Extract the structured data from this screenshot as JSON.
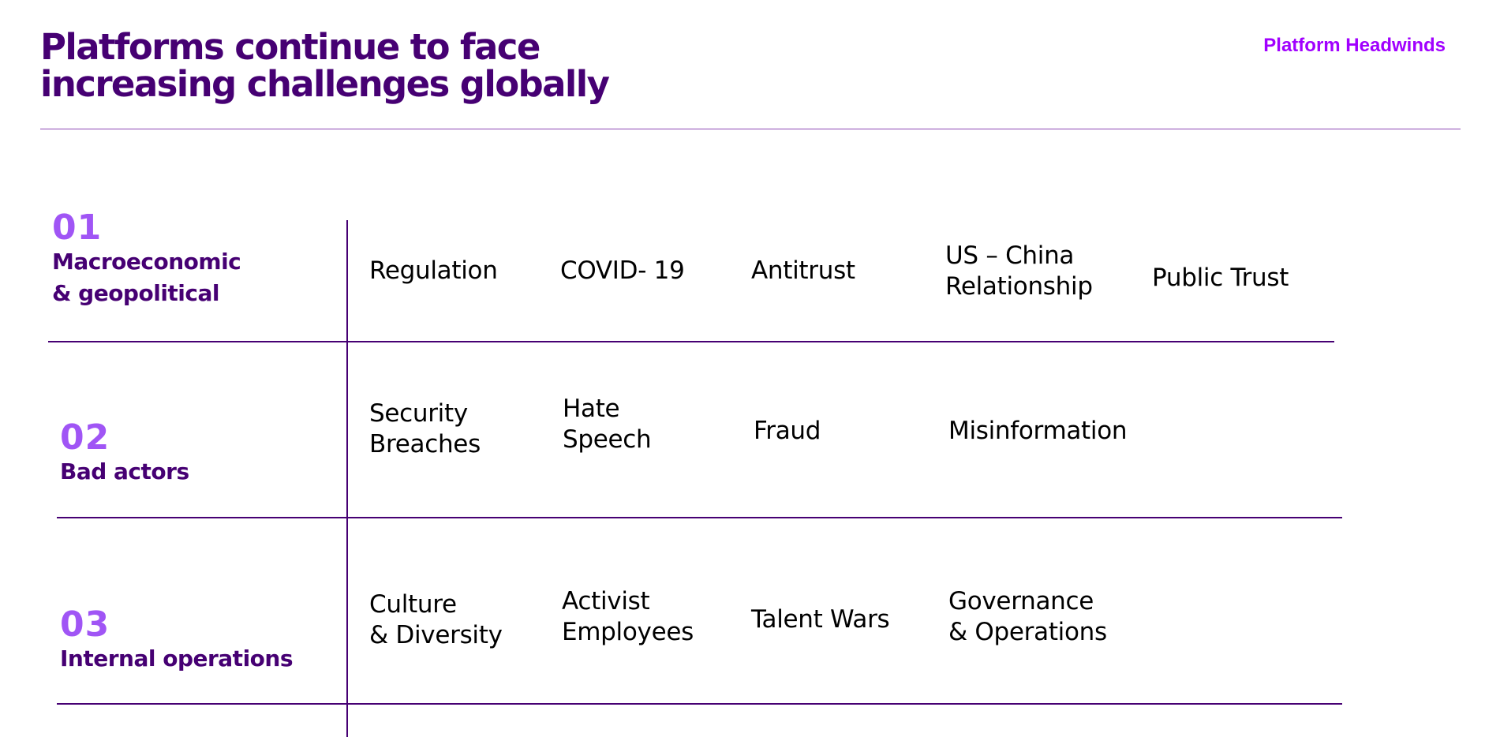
{
  "header": {
    "title_line1": "Platforms continue to face",
    "title_line2": "increasing challenges globally",
    "section_tag": "Platform Headwinds"
  },
  "rows": [
    {
      "number": "01",
      "label_line1": "Macroeconomic",
      "label_line2": "& geopolitical",
      "items": [
        {
          "line1": "Regulation"
        },
        {
          "line1": "COVID- 19"
        },
        {
          "line1": "Antitrust"
        },
        {
          "line1": "US – China",
          "line2": "Relationship"
        },
        {
          "line1": "Public Trust"
        }
      ]
    },
    {
      "number": "02",
      "label_line1": "Bad actors",
      "items": [
        {
          "line1": "Security",
          "line2": "Breaches"
        },
        {
          "line1": "Hate",
          "line2": "Speech"
        },
        {
          "line1": "Fraud"
        },
        {
          "line1": "Misinformation"
        }
      ]
    },
    {
      "number": "03",
      "label_line1": "Internal operations",
      "items": [
        {
          "line1": "Culture",
          "line2": "& Diversity"
        },
        {
          "line1": "Activist",
          "line2": "Employees"
        },
        {
          "line1": "Talent Wars"
        },
        {
          "line1": "Governance",
          "line2": "& Operations"
        }
      ]
    }
  ],
  "colors": {
    "brand_dark_purple": "#460073",
    "accent_purple": "#a100ff",
    "number_purple": "#a055f5"
  }
}
